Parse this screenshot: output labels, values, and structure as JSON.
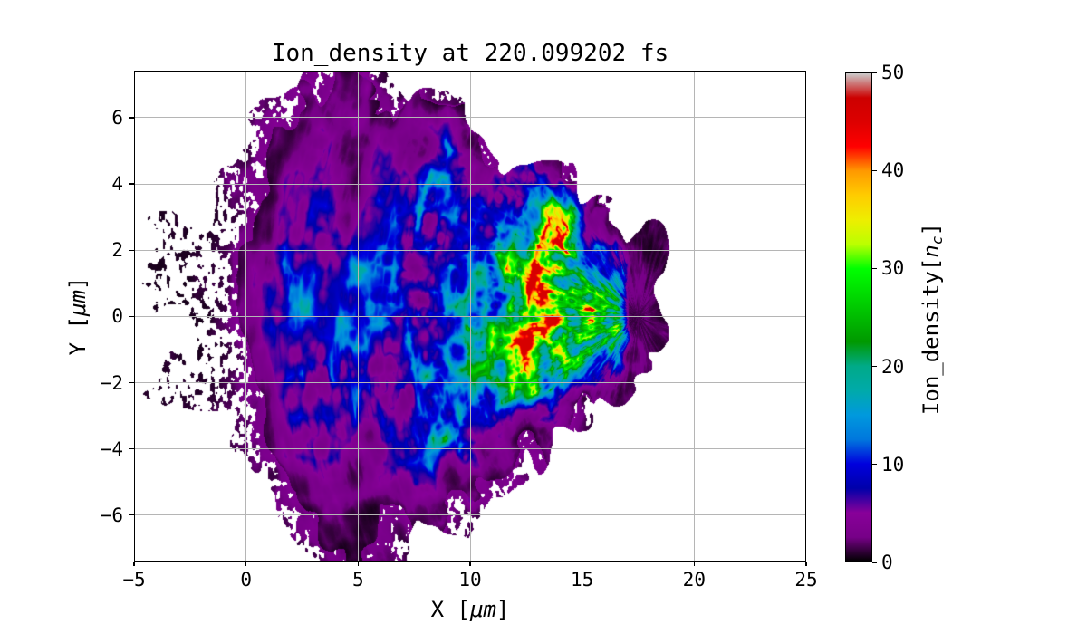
{
  "figure": {
    "title": "Ion_density at 220.099202 fs",
    "background": "#ffffff"
  },
  "axes": {
    "xlabel": {
      "name": "X",
      "pre": " [",
      "unit": "μm",
      "post": "]"
    },
    "ylabel": {
      "name": "Y",
      "pre": " [",
      "unit": "μm",
      "post": "]"
    },
    "x_ticks": {
      "labels": [
        "−5",
        "0",
        "5",
        "10",
        "15",
        "20",
        "25"
      ],
      "values": [
        -5,
        0,
        5,
        10,
        15,
        20,
        25
      ]
    },
    "y_ticks": {
      "labels": [
        "−6",
        "−4",
        "−2",
        "0",
        "2",
        "4",
        "6"
      ],
      "values": [
        -6,
        -4,
        -2,
        0,
        2,
        4,
        6
      ]
    },
    "grid_x": [
      0,
      5,
      10,
      15,
      20
    ],
    "grid_y": [
      -6,
      -4,
      -2,
      0,
      2,
      4,
      6
    ],
    "grid_color": "#b5b5b5",
    "x_range": [
      -5,
      25
    ],
    "y_range": [
      -7.4,
      7.42
    ]
  },
  "colorbar": {
    "label": {
      "pre": "Ion_density[",
      "var": "n",
      "sub": "c",
      "post": "]"
    },
    "ticks": {
      "labels": [
        "0",
        "10",
        "20",
        "30",
        "40",
        "50"
      ],
      "values": [
        0,
        10,
        20,
        30,
        40,
        50
      ]
    },
    "vmin": 0,
    "vmax": 50,
    "colormap": "nipy_spectral",
    "stops": [
      [
        0.0,
        "#000000"
      ],
      [
        0.05,
        "#770088"
      ],
      [
        0.1,
        "#880099"
      ],
      [
        0.15,
        "#0000aa"
      ],
      [
        0.2,
        "#0000dd"
      ],
      [
        0.25,
        "#0077dd"
      ],
      [
        0.3,
        "#0099dd"
      ],
      [
        0.35,
        "#00aaaa"
      ],
      [
        0.4,
        "#00aa88"
      ],
      [
        0.45,
        "#009900"
      ],
      [
        0.5,
        "#00bb00"
      ],
      [
        0.55,
        "#00dd00"
      ],
      [
        0.6,
        "#00ff00"
      ],
      [
        0.65,
        "#bbff00"
      ],
      [
        0.7,
        "#eeee00"
      ],
      [
        0.75,
        "#ffcc00"
      ],
      [
        0.8,
        "#ff9900"
      ],
      [
        0.85,
        "#ff0000"
      ],
      [
        0.9,
        "#dd0000"
      ],
      [
        0.95,
        "#cc0000"
      ],
      [
        1.0,
        "#cccccc"
      ]
    ]
  },
  "chart_data": {
    "type": "heatmap",
    "title": "Ion_density at 220.099202 fs",
    "xlabel": "X [μm]",
    "ylabel": "Y [μm]",
    "zlabel": "Ion_density[n_c]",
    "xlim": [
      -5,
      25
    ],
    "ylim": [
      -7.4,
      7.42
    ],
    "zlim": [
      0,
      50
    ],
    "grid": true,
    "x_grid_start": -5,
    "x_grid_step": 1,
    "y_grid_start": 7,
    "y_grid_step": -1,
    "units": "n_c",
    "density_grid": [
      [
        null,
        null,
        null,
        null,
        null,
        null,
        null,
        null,
        0.8,
        1.5,
        1.0,
        0.5,
        null,
        null,
        null,
        null,
        null,
        null,
        null,
        null,
        null,
        null,
        null,
        null,
        null,
        null,
        null,
        null,
        null,
        null,
        null
      ],
      [
        null,
        null,
        null,
        null,
        null,
        null,
        0.5,
        1.2,
        3,
        2,
        3.5,
        1.2,
        2.5,
        1,
        0.6,
        null,
        null,
        null,
        null,
        null,
        null,
        null,
        null,
        null,
        null,
        null,
        null,
        null,
        null,
        null,
        null
      ],
      [
        null,
        null,
        null,
        null,
        null,
        0.5,
        1.2,
        2.5,
        4,
        2.5,
        1.5,
        3,
        2.5,
        4,
        8,
        3,
        1.0,
        null,
        null,
        null,
        null,
        null,
        null,
        null,
        null,
        null,
        null,
        null,
        null,
        null,
        null
      ],
      [
        null,
        null,
        null,
        null,
        null,
        0.6,
        1.5,
        3,
        4,
        3,
        2,
        4,
        6,
        8,
        12,
        8,
        4,
        6,
        3,
        0.8,
        null,
        null,
        null,
        null,
        null,
        null,
        null,
        null,
        null,
        null,
        null
      ],
      [
        null,
        null,
        null,
        null,
        0.3,
        0.8,
        2,
        4,
        6,
        5,
        4,
        6,
        8,
        10,
        8,
        6,
        8,
        10,
        20,
        25,
        8,
        0.6,
        null,
        null,
        null,
        null,
        null,
        null,
        null,
        null,
        null
      ],
      [
        null,
        0.2,
        0.3,
        0.3,
        0.5,
        1.5,
        3,
        8,
        6,
        5,
        8,
        10,
        8,
        6,
        10,
        12,
        10,
        14,
        22,
        30,
        18,
        8,
        1.5,
        1.4,
        null,
        null,
        null,
        null,
        null,
        null,
        null
      ],
      [
        null,
        0.2,
        0.2,
        0.4,
        0.6,
        2,
        4,
        10,
        8,
        6,
        10,
        12,
        10,
        8,
        12,
        10,
        14,
        25,
        35,
        20,
        25,
        15,
        1.5,
        1.5,
        null,
        null,
        null,
        null,
        null,
        null,
        null
      ],
      [
        null,
        null,
        null,
        0.2,
        0.5,
        1.5,
        3,
        6,
        10,
        8,
        6,
        8,
        6,
        8,
        10,
        12,
        10,
        30,
        40,
        18,
        30,
        18,
        1.6,
        1.5,
        null,
        null,
        null,
        null,
        null,
        null,
        null
      ],
      [
        null,
        null,
        null,
        null,
        0.3,
        1,
        3,
        8,
        6,
        8,
        10,
        8,
        10,
        8,
        10,
        12,
        14,
        30,
        38,
        25,
        18,
        12,
        1.5,
        1.4,
        null,
        null,
        null,
        null,
        null,
        null,
        null
      ],
      [
        null,
        0.2,
        0.3,
        0.3,
        0.4,
        1,
        3,
        6,
        8,
        10,
        8,
        10,
        8,
        10,
        8,
        10,
        12,
        20,
        25,
        15,
        8,
        2,
        1.4,
        null,
        null,
        null,
        null,
        null,
        null,
        null,
        null
      ],
      [
        null,
        null,
        null,
        null,
        null,
        0.6,
        2,
        4,
        6,
        8,
        6,
        5,
        6,
        8,
        10,
        12,
        10,
        8,
        6,
        2,
        0.4,
        null,
        null,
        null,
        null,
        null,
        null,
        null,
        null,
        null,
        null
      ],
      [
        null,
        null,
        null,
        null,
        null,
        0.5,
        1.5,
        3,
        5,
        4,
        3,
        4,
        5,
        8,
        12,
        8,
        4,
        3,
        1,
        null,
        null,
        null,
        null,
        null,
        null,
        null,
        null,
        null,
        null,
        null,
        null
      ],
      [
        null,
        null,
        null,
        null,
        null,
        null,
        0.5,
        2,
        3.5,
        2.5,
        2,
        3,
        4,
        3,
        2.5,
        2,
        1,
        0.5,
        null,
        null,
        null,
        null,
        null,
        null,
        null,
        null,
        null,
        null,
        null,
        null,
        null
      ],
      [
        null,
        null,
        null,
        null,
        null,
        null,
        null,
        0.5,
        1.5,
        2.5,
        2,
        1.5,
        1,
        2,
        0.8,
        0.5,
        null,
        null,
        null,
        null,
        null,
        null,
        null,
        null,
        null,
        null,
        null,
        null,
        null,
        null,
        null
      ],
      [
        null,
        null,
        null,
        null,
        null,
        null,
        null,
        null,
        0.4,
        1.2,
        1.5,
        0.8,
        0.4,
        null,
        null,
        null,
        null,
        null,
        null,
        null,
        null,
        null,
        null,
        null,
        null,
        null,
        null,
        null,
        null,
        null,
        null
      ]
    ]
  }
}
